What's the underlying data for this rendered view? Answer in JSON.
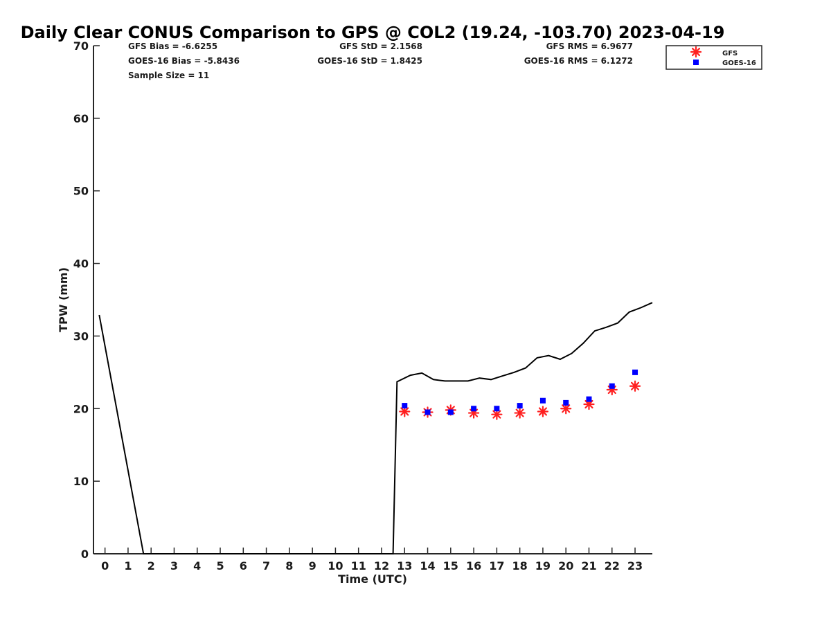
{
  "chart_data": {
    "type": "line",
    "title": "Daily Clear CONUS Comparison to GPS @ COL2 (19.24, -103.70) 2023-04-19",
    "xlabel": "Time (UTC)",
    "ylabel": "TPW (mm)",
    "xlim": [
      -0.5,
      23.75
    ],
    "ylim": [
      0,
      70
    ],
    "xticks": [
      0,
      1,
      2,
      3,
      4,
      5,
      6,
      7,
      8,
      9,
      10,
      11,
      12,
      13,
      14,
      15,
      16,
      17,
      18,
      19,
      20,
      21,
      22,
      23
    ],
    "yticks": [
      0,
      10,
      20,
      30,
      40,
      50,
      60,
      70
    ],
    "grid": false,
    "legend_position": "top-right outside",
    "stats": {
      "gfs_bias": "GFS Bias = -6.6255",
      "goes_bias": "GOES-16 Bias = -5.8436",
      "sample_size": "Sample Size = 11",
      "gfs_std": "GFS StD = 2.1568",
      "goes_std": "GOES-16 StD = 1.8425",
      "gfs_rms": "GFS RMS = 6.9677",
      "goes_rms": "GOES-16 RMS = 6.1272"
    },
    "series": [
      {
        "name": "",
        "kind": "line",
        "color": "#000000",
        "x": [
          -0.25,
          1.67,
          1.75,
          12.4,
          12.5,
          12.67,
          13.25,
          13.75,
          14.25,
          14.75,
          15.25,
          15.75,
          16.25,
          16.75,
          17.25,
          17.75,
          18.25,
          18.75,
          19.25,
          19.75,
          20.25,
          20.75,
          21.25,
          21.75,
          22.25,
          22.75,
          23.25,
          23.75
        ],
        "y": [
          32.9,
          0,
          0,
          0,
          0,
          23.7,
          24.6,
          24.9,
          24.0,
          23.8,
          23.8,
          23.8,
          24.2,
          24.0,
          24.5,
          25.0,
          25.6,
          27.0,
          27.3,
          26.8,
          27.6,
          29.0,
          30.7,
          31.2,
          31.8,
          33.3,
          33.9,
          34.6
        ]
      },
      {
        "name": "GFS",
        "kind": "marker-star",
        "color": "#ff2020",
        "x": [
          13,
          14,
          15,
          16,
          17,
          18,
          19,
          20,
          21,
          22,
          23
        ],
        "y": [
          19.6,
          19.5,
          19.8,
          19.4,
          19.2,
          19.4,
          19.6,
          20.0,
          20.6,
          22.6,
          23.1
        ]
      },
      {
        "name": "GOES-16",
        "kind": "marker-square",
        "color": "#0000ff",
        "x": [
          13,
          14,
          15,
          16,
          17,
          18,
          19,
          20,
          21,
          22,
          23
        ],
        "y": [
          20.4,
          19.5,
          19.5,
          20.0,
          20.0,
          20.4,
          21.1,
          20.8,
          21.3,
          23.1,
          25.0
        ]
      }
    ]
  }
}
